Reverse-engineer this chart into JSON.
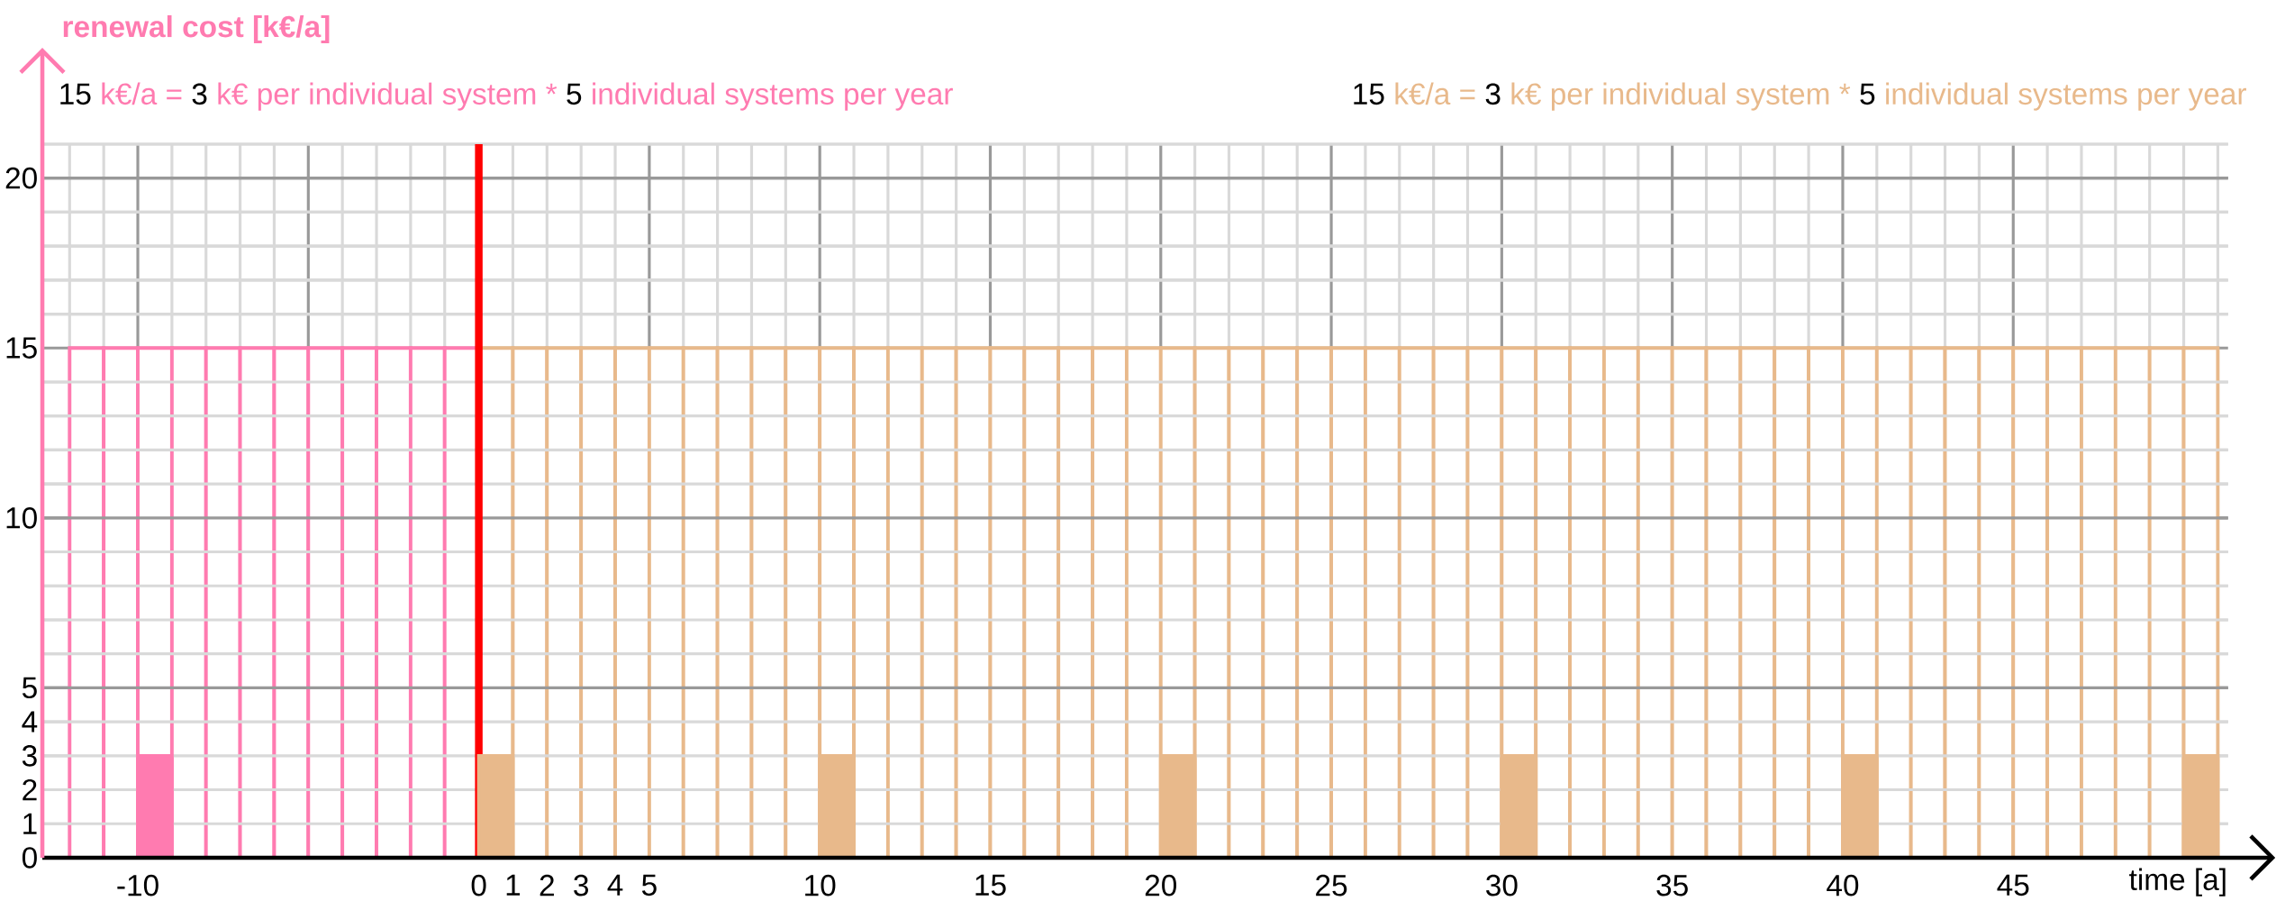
{
  "chart_data": {
    "type": "bar",
    "xlabel": "time [a]",
    "ylabel": "renewal cost [k€/a]",
    "annotations": [
      "15",
      "k€/a =",
      "3",
      "k€ per individual system  *",
      "5",
      "individual systems per year",
      "15",
      "k€/a =",
      "3",
      "k€ per individual system  *",
      "5",
      "individual systems per year"
    ],
    "xlim": [
      -12.8,
      52.6
    ],
    "ylim": [
      0,
      23.75
    ],
    "xticks": [
      -10,
      {
        "value": -5,
        "label": null
      },
      0,
      1,
      2,
      3,
      4,
      5,
      10,
      15,
      20,
      25,
      30,
      35,
      40,
      45
    ],
    "yticks": [
      0,
      1,
      2,
      3,
      4,
      5,
      10,
      15,
      20
    ],
    "grid": true,
    "ref_lines": [
      {
        "axis": "x",
        "value": 0,
        "color": "#ff0000"
      }
    ],
    "series": [
      {
        "color": "#ff7bb0",
        "x": [
          -11.5,
          -10.5,
          -9.5,
          -8.5,
          -7.5,
          -6.5,
          -5.5,
          -4.5,
          -3.5,
          -2.5,
          -1.5,
          -0.5
        ],
        "values": [
          15,
          15,
          15,
          15,
          15,
          15,
          15,
          15,
          15,
          15,
          15,
          15
        ]
      },
      {
        "color": "#e8b98b",
        "x": [
          0.5,
          1.5,
          2.5,
          3.5,
          4.5,
          5.5,
          6.5,
          7.5,
          8.5,
          9.5,
          10.5,
          11.5,
          12.5,
          13.5,
          14.5,
          15.5,
          16.5,
          17.5,
          18.5,
          19.5,
          20.5,
          21.5,
          22.5,
          23.5,
          24.5,
          25.5,
          26.5,
          27.5,
          28.5,
          29.5,
          30.5,
          31.5,
          32.5,
          33.5,
          34.5,
          35.5,
          36.5,
          37.5,
          38.5,
          39.5,
          40.5,
          41.5,
          42.5,
          43.5,
          44.5,
          45.5,
          46.5,
          47.5,
          48.5,
          49.5,
          50.5
        ],
        "values": [
          15,
          15,
          15,
          15,
          15,
          15,
          15,
          15,
          15,
          15,
          15,
          15,
          15,
          15,
          15,
          15,
          15,
          15,
          15,
          15,
          15,
          15,
          15,
          15,
          15,
          15,
          15,
          15,
          15,
          15,
          15,
          15,
          15,
          15,
          15,
          15,
          15,
          15,
          15,
          15,
          15,
          15,
          15,
          15,
          15,
          15,
          15,
          15,
          15,
          15,
          15
        ]
      },
      {
        "color": "#ff7bb0",
        "x": [
          -9.5
        ],
        "values": [
          3
        ]
      },
      {
        "color": "#e8b98b",
        "x": [
          0.5,
          10.5,
          20.5,
          30.5,
          40.5,
          50.5
        ],
        "values": [
          3,
          3,
          3,
          3,
          3,
          3
        ]
      }
    ]
  }
}
